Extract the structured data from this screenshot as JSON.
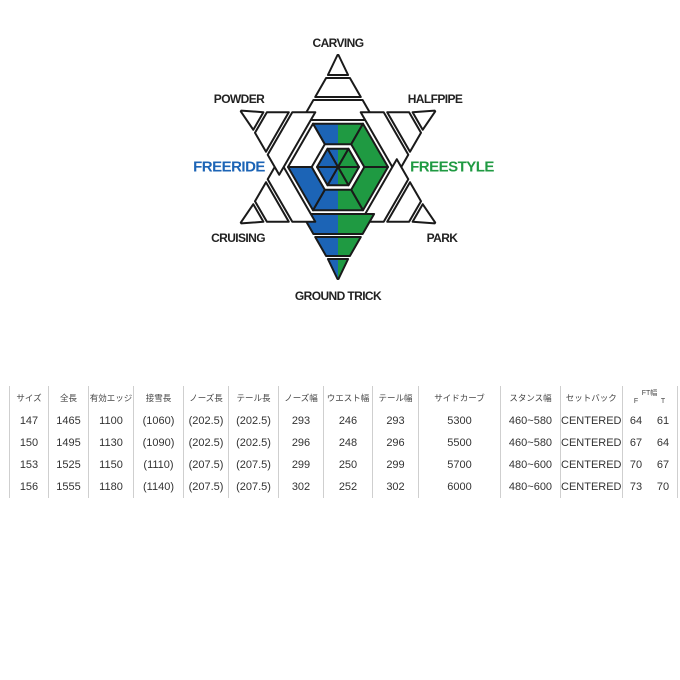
{
  "diagram": {
    "axes": [
      {
        "label": "CARVING",
        "level": 2
      },
      {
        "label": "HALFPIPE",
        "level": 2
      },
      {
        "label": "PARK",
        "level": 2
      },
      {
        "label": "GROUND TRICK",
        "level": 5
      },
      {
        "label": "CRUISING",
        "level": 2
      },
      {
        "label": "POWDER",
        "level": 1
      }
    ],
    "max_level": 5,
    "left_label": "FREERIDE",
    "right_label": "FREESTYLE",
    "colors": {
      "freeride": "#1c64b6",
      "freestyle": "#1f9a42",
      "outline": "#1a1a1a"
    }
  },
  "table": {
    "headers": [
      "サイズ",
      "全長",
      "有効エッジ",
      "接雪長",
      "ノーズ長",
      "テール長",
      "ノーズ幅",
      "ウエスト幅",
      "テール幅",
      "サイドカーブ",
      "スタンス幅",
      "セットバック",
      "FT幅"
    ],
    "ft_sub": [
      "F",
      "T"
    ],
    "rows": [
      [
        "147",
        "1465",
        "1100",
        "(1060)",
        "(202.5)",
        "(202.5)",
        "293",
        "246",
        "293",
        "5300",
        "460~580",
        "CENTERED",
        "64",
        "61"
      ],
      [
        "150",
        "1495",
        "1130",
        "(1090)",
        "(202.5)",
        "(202.5)",
        "296",
        "248",
        "296",
        "5500",
        "460~580",
        "CENTERED",
        "67",
        "64"
      ],
      [
        "153",
        "1525",
        "1150",
        "(1110)",
        "(207.5)",
        "(207.5)",
        "299",
        "250",
        "299",
        "5700",
        "480~600",
        "CENTERED",
        "70",
        "67"
      ],
      [
        "156",
        "1555",
        "1180",
        "(1140)",
        "(207.5)",
        "(207.5)",
        "302",
        "252",
        "302",
        "6000",
        "480~600",
        "CENTERED",
        "73",
        "70"
      ]
    ]
  }
}
